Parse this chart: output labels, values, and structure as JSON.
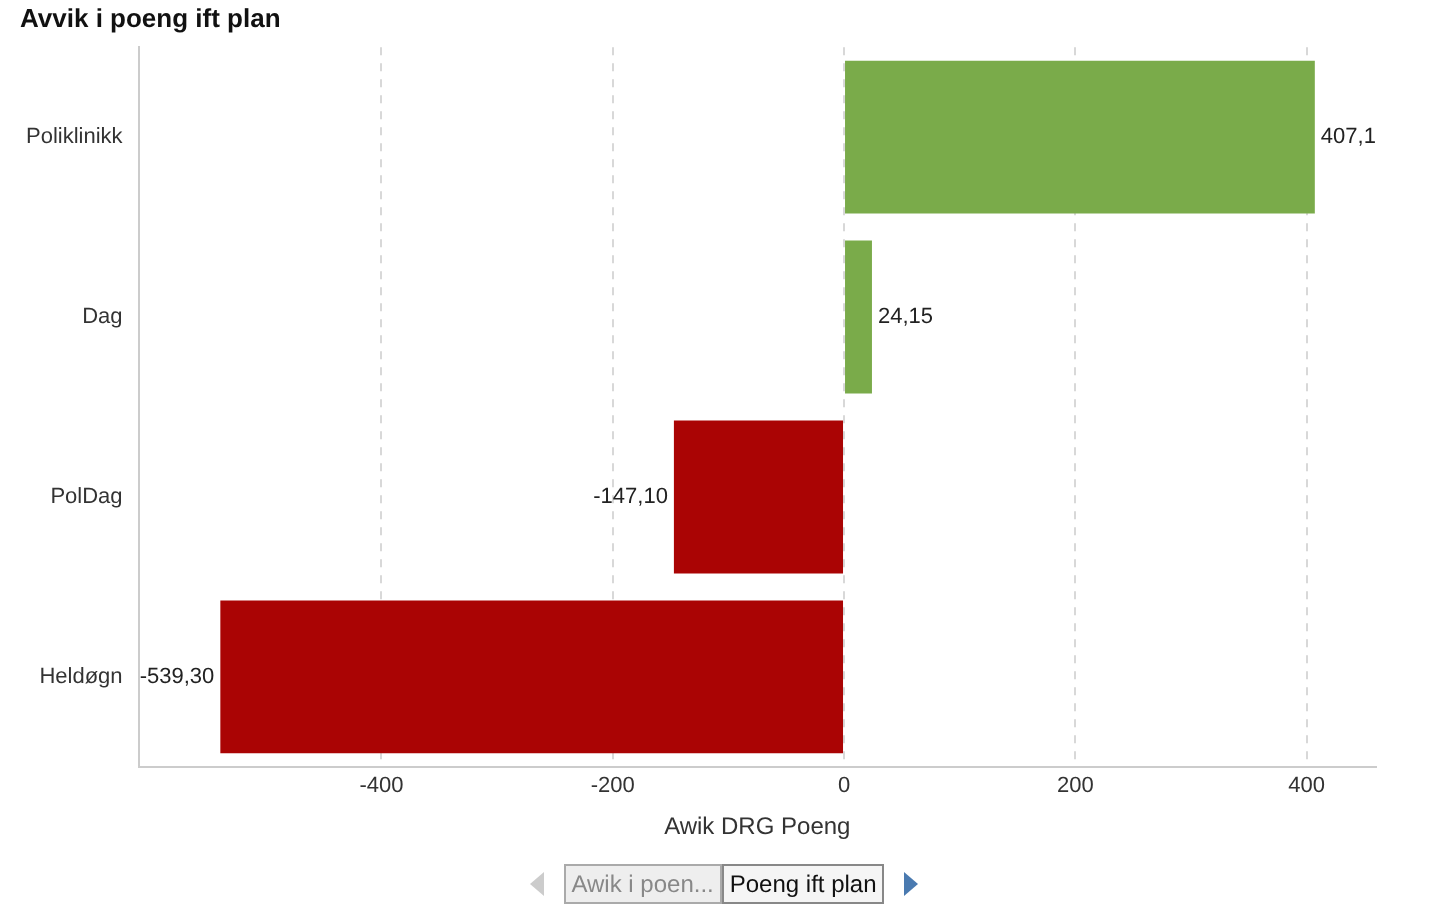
{
  "chart_data": {
    "type": "bar",
    "orientation": "horizontal",
    "title": "Avvik i poeng ift plan",
    "xlabel": "Awik DRG Poeng",
    "categories": [
      "Poliklinikk",
      "Dag",
      "PolDag",
      "Heldøgn"
    ],
    "values": [
      407.1,
      24.15,
      -147.1,
      -539.3
    ],
    "colors": [
      "#7aab4a",
      "#7aab4a",
      "#aa0404",
      "#aa0404"
    ],
    "value_labels": [
      "407,1",
      "24,15",
      "-147,10",
      "-539,30"
    ],
    "xlim": [
      -610,
      460
    ],
    "xticks": [
      -400,
      -200,
      0,
      200,
      400
    ],
    "grid": "x",
    "legend": false,
    "annotations": [
      "Awik i poen...",
      "Poeng ift plan"
    ]
  }
}
